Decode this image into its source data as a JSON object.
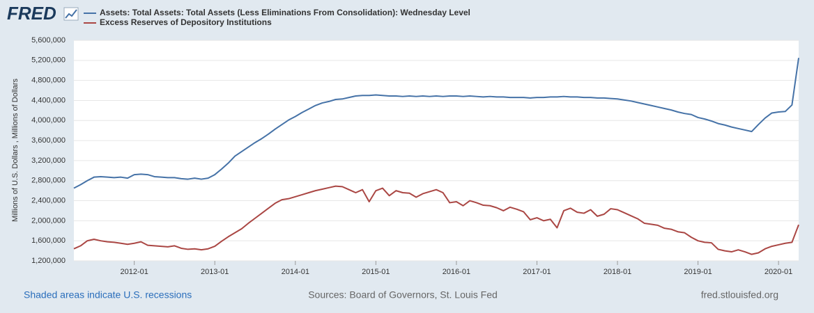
{
  "chart_data": {
    "type": "line",
    "logo": "FRED",
    "ylabel": "Millions of U.S. Dollars , Millions of Dollars",
    "note": "Shaded areas indicate U.S. recessions",
    "source": "Sources: Board of Governors, St. Louis Fed",
    "website": "fred.stlouisfed.org",
    "x": [
      "2011-04",
      "2011-05",
      "2011-06",
      "2011-07",
      "2011-08",
      "2011-09",
      "2011-10",
      "2011-11",
      "2011-12",
      "2012-01",
      "2012-02",
      "2012-03",
      "2012-04",
      "2012-05",
      "2012-06",
      "2012-07",
      "2012-08",
      "2012-09",
      "2012-10",
      "2012-11",
      "2012-12",
      "2013-01",
      "2013-02",
      "2013-03",
      "2013-04",
      "2013-05",
      "2013-06",
      "2013-07",
      "2013-08",
      "2013-09",
      "2013-10",
      "2013-11",
      "2013-12",
      "2014-01",
      "2014-02",
      "2014-03",
      "2014-04",
      "2014-05",
      "2014-06",
      "2014-07",
      "2014-08",
      "2014-09",
      "2014-10",
      "2014-11",
      "2014-12",
      "2015-01",
      "2015-02",
      "2015-03",
      "2015-04",
      "2015-05",
      "2015-06",
      "2015-07",
      "2015-08",
      "2015-09",
      "2015-10",
      "2015-11",
      "2015-12",
      "2016-01",
      "2016-02",
      "2016-03",
      "2016-04",
      "2016-05",
      "2016-06",
      "2016-07",
      "2016-08",
      "2016-09",
      "2016-10",
      "2016-11",
      "2016-12",
      "2017-01",
      "2017-02",
      "2017-03",
      "2017-04",
      "2017-05",
      "2017-06",
      "2017-07",
      "2017-08",
      "2017-09",
      "2017-10",
      "2017-11",
      "2017-12",
      "2018-01",
      "2018-02",
      "2018-03",
      "2018-04",
      "2018-05",
      "2018-06",
      "2018-07",
      "2018-08",
      "2018-09",
      "2018-10",
      "2018-11",
      "2018-12",
      "2019-01",
      "2019-02",
      "2019-03",
      "2019-04",
      "2019-05",
      "2019-06",
      "2019-07",
      "2019-08",
      "2019-09",
      "2019-10",
      "2019-11",
      "2019-12",
      "2020-01",
      "2020-02",
      "2020-03",
      "2020-04"
    ],
    "series": [
      {
        "name": "Assets: Total Assets: Total Assets (Less Eliminations From Consolidation): Wednesday Level",
        "color": "#4572a7",
        "values": [
          2650000,
          2720000,
          2800000,
          2870000,
          2880000,
          2870000,
          2860000,
          2870000,
          2850000,
          2920000,
          2930000,
          2920000,
          2880000,
          2870000,
          2860000,
          2860000,
          2840000,
          2830000,
          2850000,
          2830000,
          2850000,
          2920000,
          3030000,
          3150000,
          3290000,
          3380000,
          3470000,
          3560000,
          3640000,
          3730000,
          3830000,
          3920000,
          4010000,
          4080000,
          4160000,
          4230000,
          4300000,
          4350000,
          4380000,
          4420000,
          4430000,
          4460000,
          4490000,
          4500000,
          4500000,
          4510000,
          4500000,
          4490000,
          4490000,
          4480000,
          4490000,
          4480000,
          4490000,
          4480000,
          4490000,
          4480000,
          4490000,
          4490000,
          4480000,
          4490000,
          4480000,
          4470000,
          4480000,
          4470000,
          4470000,
          4460000,
          4460000,
          4460000,
          4450000,
          4460000,
          4460000,
          4470000,
          4470000,
          4480000,
          4470000,
          4470000,
          4460000,
          4460000,
          4450000,
          4450000,
          4440000,
          4430000,
          4410000,
          4390000,
          4360000,
          4330000,
          4300000,
          4270000,
          4240000,
          4210000,
          4170000,
          4140000,
          4120000,
          4060000,
          4030000,
          3990000,
          3940000,
          3910000,
          3870000,
          3840000,
          3810000,
          3780000,
          3920000,
          4050000,
          4150000,
          4170000,
          4180000,
          4310000,
          5250000
        ]
      },
      {
        "name": "Excess Reserves of Depository Institutions",
        "color": "#aa4643",
        "values": [
          1440000,
          1500000,
          1600000,
          1630000,
          1600000,
          1580000,
          1570000,
          1550000,
          1530000,
          1550000,
          1580000,
          1510000,
          1500000,
          1490000,
          1480000,
          1500000,
          1450000,
          1430000,
          1440000,
          1420000,
          1440000,
          1490000,
          1590000,
          1680000,
          1760000,
          1840000,
          1950000,
          2050000,
          2150000,
          2250000,
          2350000,
          2420000,
          2440000,
          2480000,
          2520000,
          2560000,
          2600000,
          2630000,
          2660000,
          2690000,
          2680000,
          2620000,
          2560000,
          2620000,
          2380000,
          2600000,
          2650000,
          2500000,
          2600000,
          2560000,
          2550000,
          2470000,
          2540000,
          2580000,
          2620000,
          2560000,
          2360000,
          2380000,
          2300000,
          2400000,
          2360000,
          2310000,
          2300000,
          2260000,
          2200000,
          2270000,
          2230000,
          2180000,
          2020000,
          2060000,
          2000000,
          2030000,
          1860000,
          2200000,
          2250000,
          2170000,
          2150000,
          2220000,
          2090000,
          2130000,
          2240000,
          2220000,
          2160000,
          2100000,
          2040000,
          1950000,
          1930000,
          1910000,
          1850000,
          1830000,
          1780000,
          1760000,
          1670000,
          1600000,
          1570000,
          1560000,
          1430000,
          1400000,
          1380000,
          1420000,
          1380000,
          1330000,
          1360000,
          1440000,
          1490000,
          1520000,
          1550000,
          1570000,
          1920000
        ]
      }
    ],
    "xlim": [
      "2011-04",
      "2020-04"
    ],
    "xticks": [
      "2012-01",
      "2013-01",
      "2014-01",
      "2015-01",
      "2016-01",
      "2017-01",
      "2018-01",
      "2019-01",
      "2020-01"
    ],
    "ylim": [
      1200000,
      5600000
    ],
    "yticks": [
      {
        "value": 1200000,
        "label": "1,200,000"
      },
      {
        "value": 1600000,
        "label": "1,600,000"
      },
      {
        "value": 2000000,
        "label": "2,000,000"
      },
      {
        "value": 2400000,
        "label": "2,400,000"
      },
      {
        "value": 2800000,
        "label": "2,800,000"
      },
      {
        "value": 3200000,
        "label": "3,200,000"
      },
      {
        "value": 3600000,
        "label": "3,600,000"
      },
      {
        "value": 4000000,
        "label": "4,000,000"
      },
      {
        "value": 4400000,
        "label": "4,400,000"
      },
      {
        "value": 4800000,
        "label": "4,800,000"
      },
      {
        "value": 5200000,
        "label": "5,200,000"
      },
      {
        "value": 5600000,
        "label": "5,600,000"
      }
    ],
    "grid": true
  }
}
